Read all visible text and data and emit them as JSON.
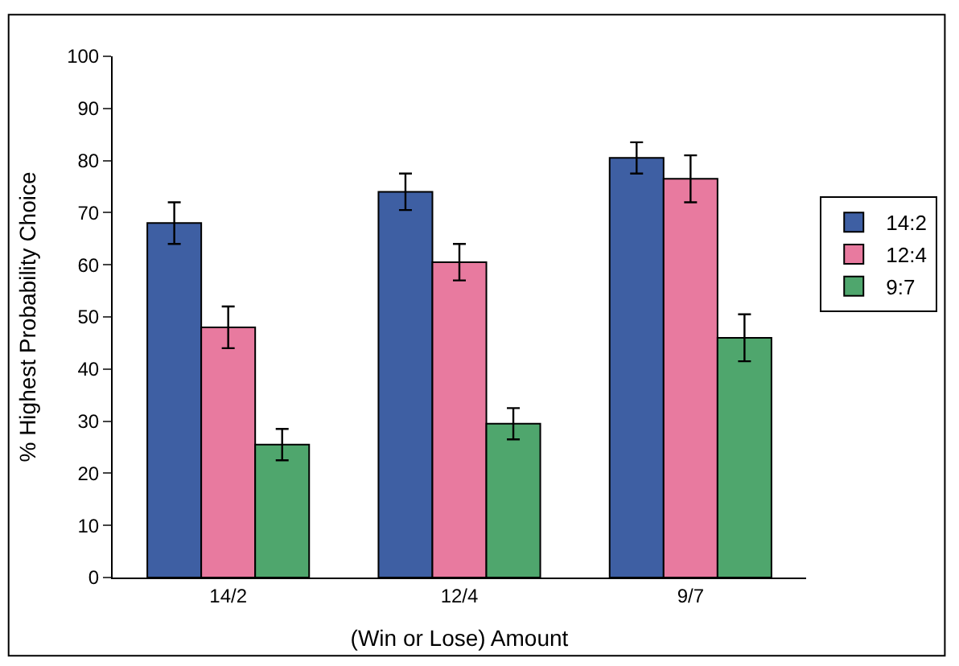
{
  "chart_data": {
    "type": "bar",
    "xlabel": "(Win or Lose) Amount",
    "ylabel": "% Highest Probability Choice",
    "categories": [
      "14/2",
      "12/4",
      "9/7"
    ],
    "series": [
      {
        "name": "14:2",
        "color": "#3e5fa3",
        "values": [
          68,
          74,
          80.5
        ],
        "errors": [
          4,
          3.5,
          3
        ]
      },
      {
        "name": "12:4",
        "color": "#e87a9f",
        "values": [
          48,
          60.5,
          76.5
        ],
        "errors": [
          4,
          3.5,
          4.5
        ]
      },
      {
        "name": "9:7",
        "color": "#4fa66d",
        "values": [
          25.5,
          29.5,
          46
        ],
        "errors": [
          3,
          3,
          4.5
        ]
      }
    ],
    "ylim": [
      0,
      100
    ],
    "yticks": [
      0,
      10,
      20,
      30,
      40,
      50,
      60,
      70,
      80,
      90,
      100
    ],
    "legend": "right"
  }
}
